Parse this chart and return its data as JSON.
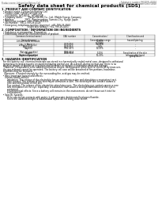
{
  "title": "Safety data sheet for chemical products (SDS)",
  "header_left": "Product name: Lithium Ion Battery Cell",
  "header_right_l1": "Substance number: M62003L-00010",
  "header_right_l2": "Establishment / Revision: Dec.7.2010",
  "section1_title": "1. PRODUCT AND COMPANY IDENTIFICATION",
  "section1_lines": [
    "  • Product name: Lithium Ion Battery Cell",
    "  • Product code: Cylindrical-type cell",
    "     (IVF18650U, IVF18650L, IVF18650A)",
    "  • Company name:        Sanyo Electric Co., Ltd., Mobile Energy Company",
    "  • Address:               2001   Kamimunakan, Sumoto-City, Hyogo, Japan",
    "  • Telephone number:  +81-(799)-26-4111",
    "  • Fax number:  +81-1799-26-4129",
    "  • Emergency telephone number (daytime): +81-799-26-3942",
    "                                     (Night and holiday): +81-799-26-4101"
  ],
  "section2_title": "2. COMPOSITION / INFORMATION ON INGREDIENTS",
  "section2_intro": "  • Substance or preparation: Preparation",
  "section2_sub": "  • Information about the chemical nature of product:",
  "table_headers": [
    "Common chemical name /\nGeneral names",
    "CAS number",
    "Concentration /\nConcentration range\n(0-100%)",
    "Classification and\nhazard labeling"
  ],
  "table_rows": [
    [
      "Lithium oxide tantalate\n(LiMn₂O₄/Co/Ni/Ox)",
      "-",
      "30-60%",
      "-"
    ],
    [
      "Iron",
      "7439-89-6",
      "15-25%",
      "-"
    ],
    [
      "Aluminum",
      "7429-90-5",
      "2-6%",
      "-"
    ],
    [
      "Graphite\n(Natural graphite)\n(Artificial graphite)",
      "7782-42-5\n7782-42-2",
      "10-25%",
      "-"
    ],
    [
      "Copper",
      "7440-50-8",
      "5-10%",
      "Sensitization of the skin\ngroup No.2"
    ],
    [
      "Organic electrolyte",
      "-",
      "10-20%",
      "Inflammable liquid"
    ]
  ],
  "section3_title": "3. HAZARDS IDENTIFICATION",
  "section3_lines": [
    "  For this battery cell, chemical materials are stored in a hermetically sealed metal case, designed to withstand",
    "  temperatures and pressures encountered during normal use. As a result, during normal use, there is no",
    "  physical danger of ignition or explosion and therefore no danger of hazardous materials leakage.",
    "    However, if exposed to a fire added mechanical shocks, decomposed, when electric chemical by mass use,",
    "  the gas releases cannot be operated. The battery cell case will be breached of fire-portions, hazardous",
    "  materials may be released.",
    "    Moreover, if heated strongly by the surrounding fire, acid gas may be emitted."
  ],
  "section3_bullet1": "  • Most important hazard and effects:",
  "section3_human": "     Human health effects:",
  "section3_human_lines": [
    "        Inhalation: The release of the electrolyte has an anesthesia action and stimulates a respiratory tract.",
    "        Skin contact: The release of the electrolyte stimulates a skin. The electrolyte skin contact causes a",
    "        sore and stimulation on the skin.",
    "        Eye contact: The release of the electrolyte stimulates eyes. The electrolyte eye contact causes a sore",
    "        and stimulation on the eye. Especially, a substance that causes a strong inflammation of the eye is",
    "        contained.",
    "        Environmental effects: Since a battery cell remains in the environment, do not throw out it into the",
    "        environment."
  ],
  "section3_specific": "  • Specific hazards:",
  "section3_specific_lines": [
    "        If the electrolyte contacts with water, it will generate detrimental hydrogen fluoride.",
    "        Since the used electrolyte is inflammable liquid, do not bring close to fire."
  ],
  "bg_color": "#ffffff",
  "text_color": "#000000",
  "header_text_color": "#555555",
  "table_line_color": "#888888"
}
